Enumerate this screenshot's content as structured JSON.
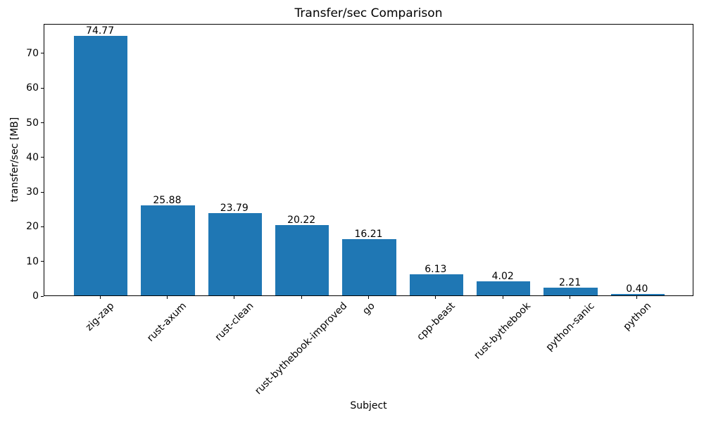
{
  "chart_data": {
    "type": "bar",
    "title": "Transfer/sec Comparison",
    "xlabel": "Subject",
    "ylabel": "transfer/sec [MB]",
    "categories": [
      "zig-zap",
      "rust-axum",
      "rust-clean",
      "rust-bythebook-improved",
      "go",
      "cpp-beast",
      "rust-bythebook",
      "python-sanic",
      "python"
    ],
    "values": [
      74.77,
      25.88,
      23.79,
      20.22,
      16.21,
      6.13,
      4.02,
      2.21,
      0.4
    ],
    "bar_value_labels": [
      "74.77",
      "25.88",
      "23.79",
      "20.22",
      "16.21",
      "6.13",
      "4.02",
      "2.21",
      "0.40"
    ],
    "yticks": [
      0,
      10,
      20,
      30,
      40,
      50,
      60,
      70
    ],
    "ytick_labels": [
      "0",
      "10",
      "20",
      "30",
      "40",
      "50",
      "60",
      "70"
    ],
    "ylim": [
      0,
      78.5
    ],
    "bar_color": "#1f77b4",
    "axis_color": "#000000",
    "text_color": "#000000",
    "background_color": "#ffffff",
    "grid": false,
    "legend_position": "none",
    "bar_width_fraction": 0.8,
    "x_tick_rotation_deg": 45
  }
}
